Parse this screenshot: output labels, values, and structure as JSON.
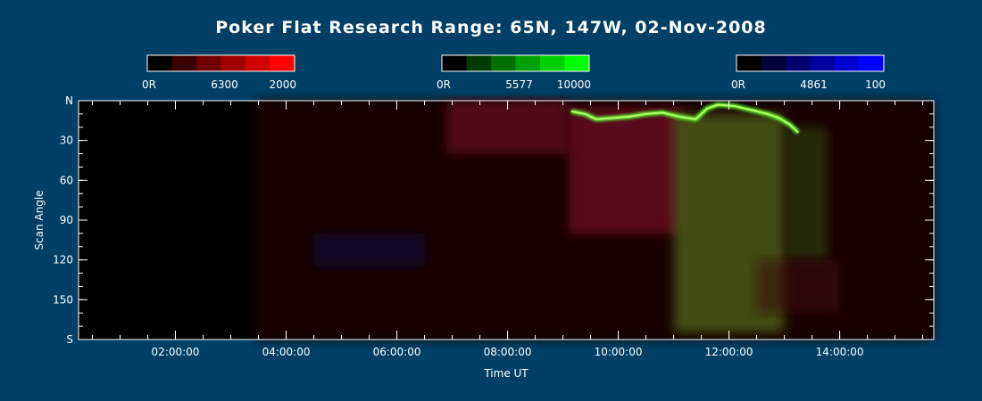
{
  "chart_data": {
    "type": "heatmap",
    "title": "Poker Flat Research Range: 65N, 147W, 02-Nov-2008",
    "xlabel": "Time UT",
    "ylabel": "Scan Angle",
    "xlim": [
      0.25,
      15.7
    ],
    "ylim": [
      0,
      180
    ],
    "x_ticks": [
      {
        "value": 2,
        "label": "02:00:00"
      },
      {
        "value": 4,
        "label": "04:00:00"
      },
      {
        "value": 6,
        "label": "06:00:00"
      },
      {
        "value": 8,
        "label": "08:00:00"
      },
      {
        "value": 10,
        "label": "10:00:00"
      },
      {
        "value": 12,
        "label": "12:00:00"
      },
      {
        "value": 14,
        "label": "14:00:00"
      }
    ],
    "x_minor_step": 0.5,
    "y_ticks": [
      {
        "value": 0,
        "label": "N"
      },
      {
        "value": 30,
        "label": "30"
      },
      {
        "value": 60,
        "label": "60"
      },
      {
        "value": 90,
        "label": "90"
      },
      {
        "value": 120,
        "label": "120"
      },
      {
        "value": 150,
        "label": "150"
      },
      {
        "value": 180,
        "label": "S"
      }
    ],
    "y_minor_step": 10,
    "colorbars": [
      {
        "name": "6300",
        "min_label": "0R",
        "mid_label": "6300",
        "max_label": "2000",
        "colors": [
          "#000000",
          "#3a0000",
          "#700000",
          "#a00000",
          "#d00000",
          "#ff0000"
        ]
      },
      {
        "name": "5577",
        "min_label": "0R",
        "mid_label": "5577",
        "max_label": "10000",
        "colors": [
          "#000000",
          "#003a00",
          "#007000",
          "#00a000",
          "#00d000",
          "#00ff00"
        ]
      },
      {
        "name": "4861",
        "min_label": "0R",
        "mid_label": "4861",
        "max_label": "100",
        "colors": [
          "#000000",
          "#00003a",
          "#000070",
          "#0000a0",
          "#0000d0",
          "#0000ff"
        ]
      }
    ],
    "emission_regions": [
      {
        "channel": "6300",
        "x": [
          3.45,
          15.7
        ],
        "y": [
          0,
          180
        ],
        "color": "#1e0505",
        "opacity": 0.9
      },
      {
        "channel": "6300",
        "x": [
          6.9,
          9.1
        ],
        "y": [
          0,
          40
        ],
        "color": "#5a0f14",
        "opacity": 0.85
      },
      {
        "channel": "6300",
        "x": [
          9.1,
          11.2
        ],
        "y": [
          5,
          100
        ],
        "color": "#6a1020",
        "opacity": 0.8
      },
      {
        "channel": "4861",
        "x": [
          4.5,
          6.5
        ],
        "y": [
          100,
          125
        ],
        "color": "#0a0a40",
        "opacity": 0.6
      },
      {
        "channel": "5577",
        "x": [
          11.0,
          13.0
        ],
        "y": [
          10,
          175
        ],
        "color": "#4a5a12",
        "opacity": 0.85
      },
      {
        "channel": "5577",
        "x": [
          13.0,
          13.8
        ],
        "y": [
          20,
          120
        ],
        "color": "#2a3a10",
        "opacity": 0.7
      },
      {
        "channel": "6300",
        "x": [
          12.5,
          14.0
        ],
        "y": [
          120,
          160
        ],
        "color": "#3a1010",
        "opacity": 0.6
      }
    ],
    "arc_5577": [
      {
        "x": 9.15,
        "y": 8
      },
      {
        "x": 9.4,
        "y": 10
      },
      {
        "x": 9.6,
        "y": 14
      },
      {
        "x": 9.9,
        "y": 13
      },
      {
        "x": 10.2,
        "y": 12
      },
      {
        "x": 10.5,
        "y": 10
      },
      {
        "x": 10.8,
        "y": 9
      },
      {
        "x": 11.1,
        "y": 12
      },
      {
        "x": 11.4,
        "y": 14
      },
      {
        "x": 11.6,
        "y": 6
      },
      {
        "x": 11.8,
        "y": 3
      },
      {
        "x": 12.1,
        "y": 4
      },
      {
        "x": 12.4,
        "y": 7
      },
      {
        "x": 12.7,
        "y": 10
      },
      {
        "x": 12.9,
        "y": 13
      },
      {
        "x": 13.1,
        "y": 18
      },
      {
        "x": 13.25,
        "y": 24
      }
    ]
  }
}
